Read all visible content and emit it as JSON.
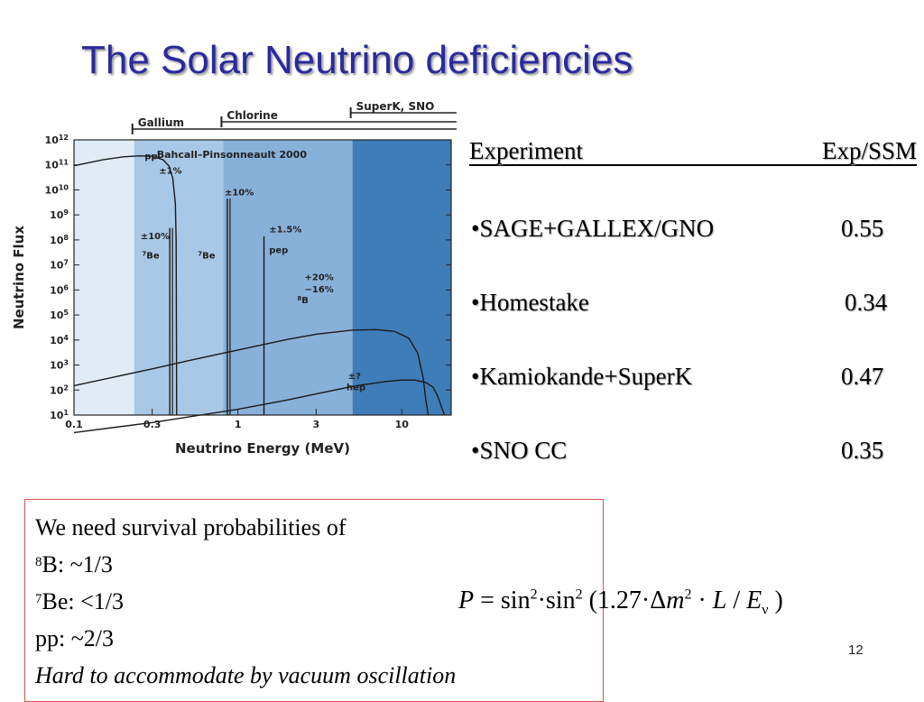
{
  "slide": {
    "title": "The Solar Neutrino deficiencies",
    "page_number": "12"
  },
  "chart_data": {
    "type": "line",
    "ylabel": "Neutrino Flux",
    "xlabel": "Neutrino Energy (MeV)",
    "x_scale": "log",
    "y_scale": "log",
    "xlim": [
      0.1,
      20
    ],
    "ylim_exponent": [
      1,
      12
    ],
    "x_ticks": [
      {
        "value": 0.1,
        "label": "0.1"
      },
      {
        "value": 0.3,
        "label": "0.3"
      },
      {
        "value": 1,
        "label": "1"
      },
      {
        "value": 3,
        "label": "3"
      },
      {
        "value": 10,
        "label": "10"
      }
    ],
    "y_tick_exponents": [
      1,
      2,
      3,
      4,
      5,
      6,
      7,
      8,
      9,
      10,
      11,
      12
    ],
    "y_tick_base": "10",
    "model_label": "Bahcall–Pinsonneault 2000",
    "thresholds": [
      {
        "name": "Gallium",
        "energy": 0.233
      },
      {
        "name": "Chlorine",
        "energy": 0.814
      },
      {
        "name": "SuperK, SNO",
        "energy": 5
      }
    ],
    "series": [
      {
        "name": "pp",
        "uncertainty": "±1%",
        "kind": "continuum",
        "points": [
          [
            0.1,
            92000000000.0
          ],
          [
            0.15,
            160000000000.0
          ],
          [
            0.2,
            210000000000.0
          ],
          [
            0.25,
            230000000000.0
          ],
          [
            0.3,
            220000000000.0
          ],
          [
            0.35,
            160000000000.0
          ],
          [
            0.38,
            90000000000.0
          ],
          [
            0.4,
            30000000000.0
          ],
          [
            0.415,
            3000000000.0
          ],
          [
            0.42,
            100000000.0
          ],
          [
            0.423,
            10
          ]
        ]
      },
      {
        "name": "⁷Be",
        "label_superscript": "7",
        "label_base": "Be",
        "uncertainty": "±10%",
        "kind": "line",
        "energies": [
          0.384,
          0.862
        ],
        "flux": [
          300000000.0,
          4500000000.0
        ]
      },
      {
        "name": "pep",
        "uncertainty": "±1.5%",
        "kind": "line",
        "energies": [
          1.442
        ],
        "flux": [
          140000000.0
        ]
      },
      {
        "name": "⁸B",
        "label_superscript": "8",
        "label_base": "B",
        "uncertainty": "+20% −16%",
        "kind": "continuum",
        "points": [
          [
            0.1,
            150
          ],
          [
            0.3,
            700
          ],
          [
            0.5,
            1500
          ],
          [
            1,
            4000
          ],
          [
            2,
            10500.0
          ],
          [
            3,
            17000.0
          ],
          [
            5,
            25000.0
          ],
          [
            7,
            26000.0
          ],
          [
            9,
            22000.0
          ],
          [
            11,
            12000.0
          ],
          [
            12.5,
            3000
          ],
          [
            13.5,
            300
          ],
          [
            14,
            40
          ],
          [
            14.5,
            10
          ]
        ]
      },
      {
        "name": "hep",
        "uncertainty": "±?",
        "kind": "continuum",
        "points": [
          [
            0.1,
            2
          ],
          [
            0.3,
            5
          ],
          [
            1,
            17
          ],
          [
            2,
            40
          ],
          [
            3,
            70
          ],
          [
            5,
            140
          ],
          [
            8,
            220
          ],
          [
            10,
            250
          ],
          [
            12,
            250
          ],
          [
            14,
            200
          ],
          [
            15.5,
            130
          ],
          [
            16.5,
            60
          ],
          [
            17.5,
            20
          ],
          [
            18.2,
            10
          ]
        ]
      }
    ],
    "colors": {
      "band_below_gallium": "#e0ebf6",
      "band_gallium": "#a8c8e6",
      "band_chlorine": "#88b1d9",
      "band_superk": "#3f7db8",
      "curve": "#1a1a1a"
    }
  },
  "experiments": {
    "header_left": "Experiment",
    "header_right": "Exp/SSM",
    "rows": [
      {
        "name": "•SAGE+GALLEX/GNO",
        "value": "0.55"
      },
      {
        "name": "•Homestake",
        "value": "0.34"
      },
      {
        "name": "•Kamiokande+SuperK",
        "value": "0.47"
      },
      {
        "name": "•SNO CC",
        "value": "0.35"
      }
    ]
  },
  "note": {
    "intro": "We need survival probabilities of",
    "b8_sup": "8",
    "b8_rest": "B: ~1/3",
    "be7_sup": "7",
    "be7_rest": "Be: <1/3",
    "pp": "pp: ~2/3",
    "conclusion": "Hard to accommodate by vacuum oscillation"
  },
  "formula": {
    "P": "P",
    "eq": " = sin",
    "sq1": "2",
    "dot1": "·sin",
    "sq2": "2",
    "open": " (1.27·Δ",
    "m": "m",
    "sq3": "2",
    "mid": " · ",
    "L": "L",
    "slash": " / ",
    "E": "E",
    "nu": "ν",
    "close": " )"
  }
}
